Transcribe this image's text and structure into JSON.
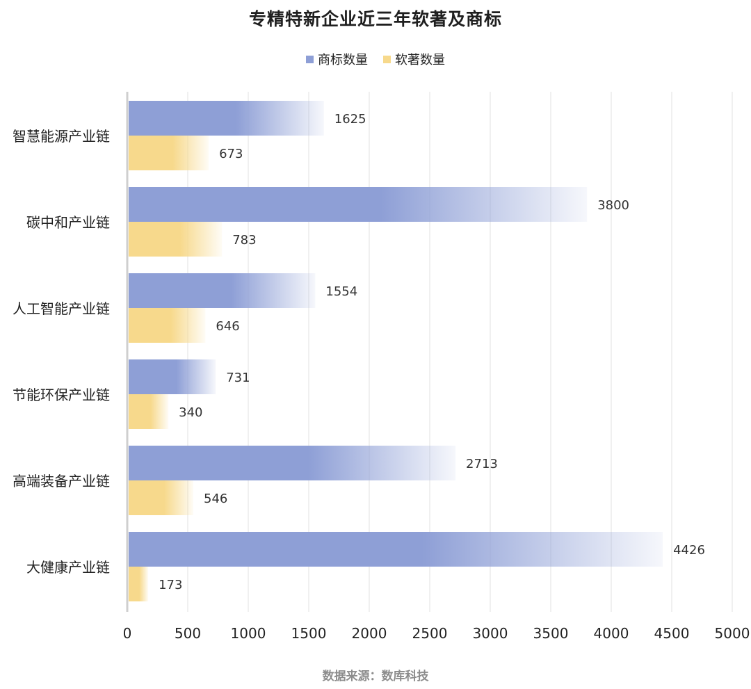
{
  "chart_data": {
    "type": "bar",
    "orientation": "horizontal",
    "title": "专精特新企业近三年软著及商标",
    "categories": [
      "智慧能源产业链",
      "碳中和产业链",
      "人工智能产业链",
      "节能环保产业链",
      "高端装备产业链",
      "大健康产业链"
    ],
    "series": [
      {
        "name": "商标数量",
        "color": "#8e9fd6",
        "values": [
          1625,
          3800,
          1554,
          731,
          2713,
          4426
        ]
      },
      {
        "name": "软著数量",
        "color": "#f7d98c",
        "values": [
          673,
          783,
          646,
          340,
          546,
          173
        ]
      }
    ],
    "xlim": [
      0,
      5000
    ],
    "xticks": [
      "0",
      "500",
      "1000",
      "1500",
      "2000",
      "2500",
      "3000",
      "3500",
      "4000",
      "4500",
      "5000"
    ],
    "grid": true,
    "legend_position": "top-center"
  },
  "footer": "数据来源：数库科技"
}
